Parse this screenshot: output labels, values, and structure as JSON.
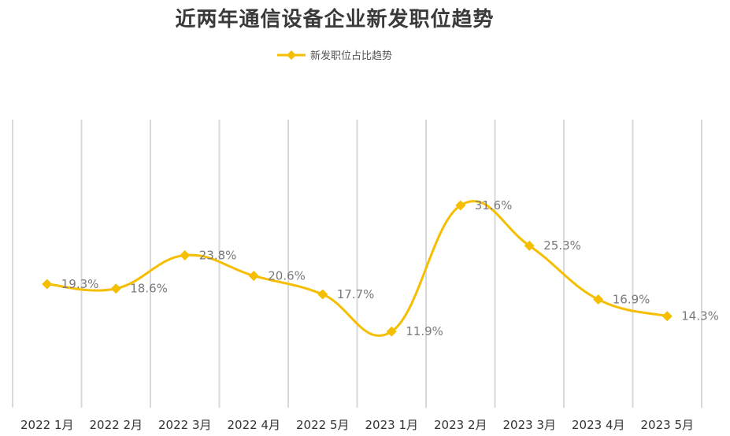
{
  "chart_data": {
    "type": "line",
    "title": "近两年通信设备企业新发职位趋势",
    "categories": [
      "2022 1月",
      "2022 2月",
      "2022 3月",
      "2022 4月",
      "2022 5月",
      "2023 1月",
      "2023 2月",
      "2023 3月",
      "2023 4月",
      "2023 5月"
    ],
    "series": [
      {
        "name": "新发职位占比趋势",
        "values": [
          19.3,
          18.6,
          23.8,
          20.6,
          17.7,
          11.9,
          31.6,
          25.3,
          16.9,
          14.3
        ],
        "labels": [
          "19.3%",
          "18.6%",
          "23.8%",
          "20.6%",
          "17.7%",
          "11.9%",
          "31.6%",
          "25.3%",
          "16.9%",
          "14.3%"
        ],
        "color": "#F5BE00",
        "marker": "diamond",
        "smooth": true
      }
    ],
    "ylim": [
      0,
      45
    ],
    "legend_position": "top",
    "gridlines": "vertical",
    "gridline_color": "#D9D9D9"
  }
}
